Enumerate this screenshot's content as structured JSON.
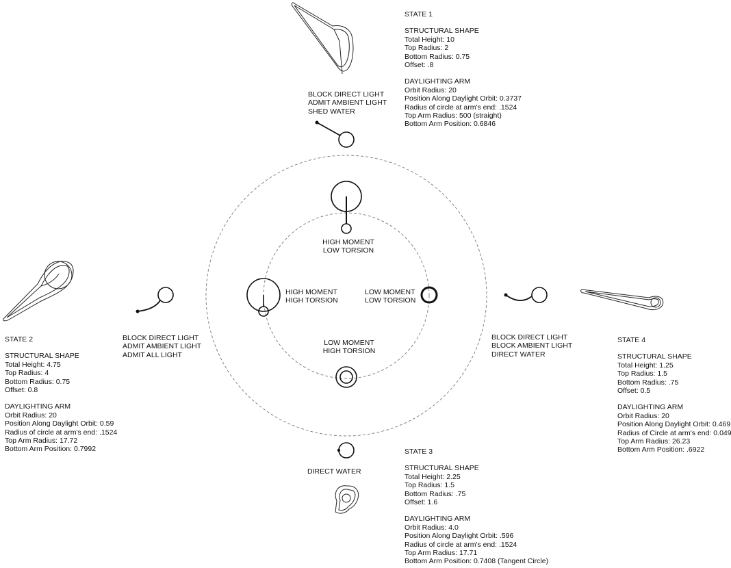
{
  "states": {
    "s1": {
      "title": "STATE 1",
      "structural_heading": "STRUCTURAL SHAPE",
      "structural": [
        "Total Height: 10",
        "Top Radius: 2",
        "Bottom Radius: 0.75",
        "Offset: .8"
      ],
      "arm_heading": "DAYLIGHTING ARM",
      "arm": [
        "Orbit Radius: 20",
        "Position Along Daylight Orbit: 0.3737",
        "Radius of circle at arm's end: .1524",
        "Top Arm Radius: 500 (straight)",
        "Bottom Arm Position: 0.6846"
      ],
      "behavior": [
        "BLOCK DIRECT LIGHT",
        "ADMIT AMBIENT LIGHT",
        "SHED WATER"
      ]
    },
    "s2": {
      "title": "STATE 2",
      "structural_heading": "STRUCTURAL SHAPE",
      "structural": [
        "Total Height: 4.75",
        "Top Radius: 4",
        "Bottom Radius: 0.75",
        "Offset: 0.8"
      ],
      "arm_heading": "DAYLIGHTING ARM",
      "arm": [
        "Orbit Radius: 20",
        "Position Along Daylight Orbit: 0.59",
        "Radius of circle at arm's end: .1524",
        "Top Arm Radius: 17.72",
        "Bottom Arm Position: 0.7992"
      ],
      "behavior": [
        "BLOCK DIRECT LIGHT",
        "ADMIT AMBIENT LIGHT",
        "ADMIT ALL LIGHT"
      ]
    },
    "s3": {
      "title": "STATE 3",
      "structural_heading": "STRUCTURAL SHAPE",
      "structural": [
        "Total Height: 2.25",
        "Top Radius: 1.5",
        "Bottom Radius: .75",
        "Offset: 1.6"
      ],
      "arm_heading": "DAYLIGHTING ARM",
      "arm": [
        "Orbit Radius: 4.0",
        "Position Along Daylight Orbit: .596",
        "Radius of circle at arm's end: .1524",
        "Top Arm Radius: 17.71",
        "Bottom Arm Position: 0.7408 (Tangent Circle)"
      ],
      "behavior": [
        "DIRECT WATER"
      ]
    },
    "s4": {
      "title": "STATE 4",
      "structural_heading": "STRUCTURAL SHAPE",
      "structural": [
        "Total Height: 1.25",
        "Top Radius: 1.5",
        "Bottom Radius: .75",
        "Offset: 0.5"
      ],
      "arm_heading": "DAYLIGHTING ARM",
      "arm": [
        "Orbit Radius: 20",
        "Position Along Daylight Orbit: 0.469",
        "Radius of Circle at arm's end: 0.049",
        "Top Arm Radius: 26.23",
        "Bottom Arm Position: .6922"
      ],
      "behavior": [
        "BLOCK DIRECT LIGHT",
        "BLOCK AMBIENT LIGHT",
        "DIRECT WATER"
      ]
    }
  },
  "quadrants": {
    "top": [
      "HIGH MOMENT",
      "LOW TORSION"
    ],
    "left": [
      "HIGH MOMENT",
      "HIGH TORSION"
    ],
    "right": [
      "LOW MOMENT",
      "LOW TORSION"
    ],
    "bottom": [
      "LOW MOMENT",
      "HIGH TORSION"
    ]
  },
  "colors": {
    "ink": "#111111",
    "dash": "#777777"
  }
}
